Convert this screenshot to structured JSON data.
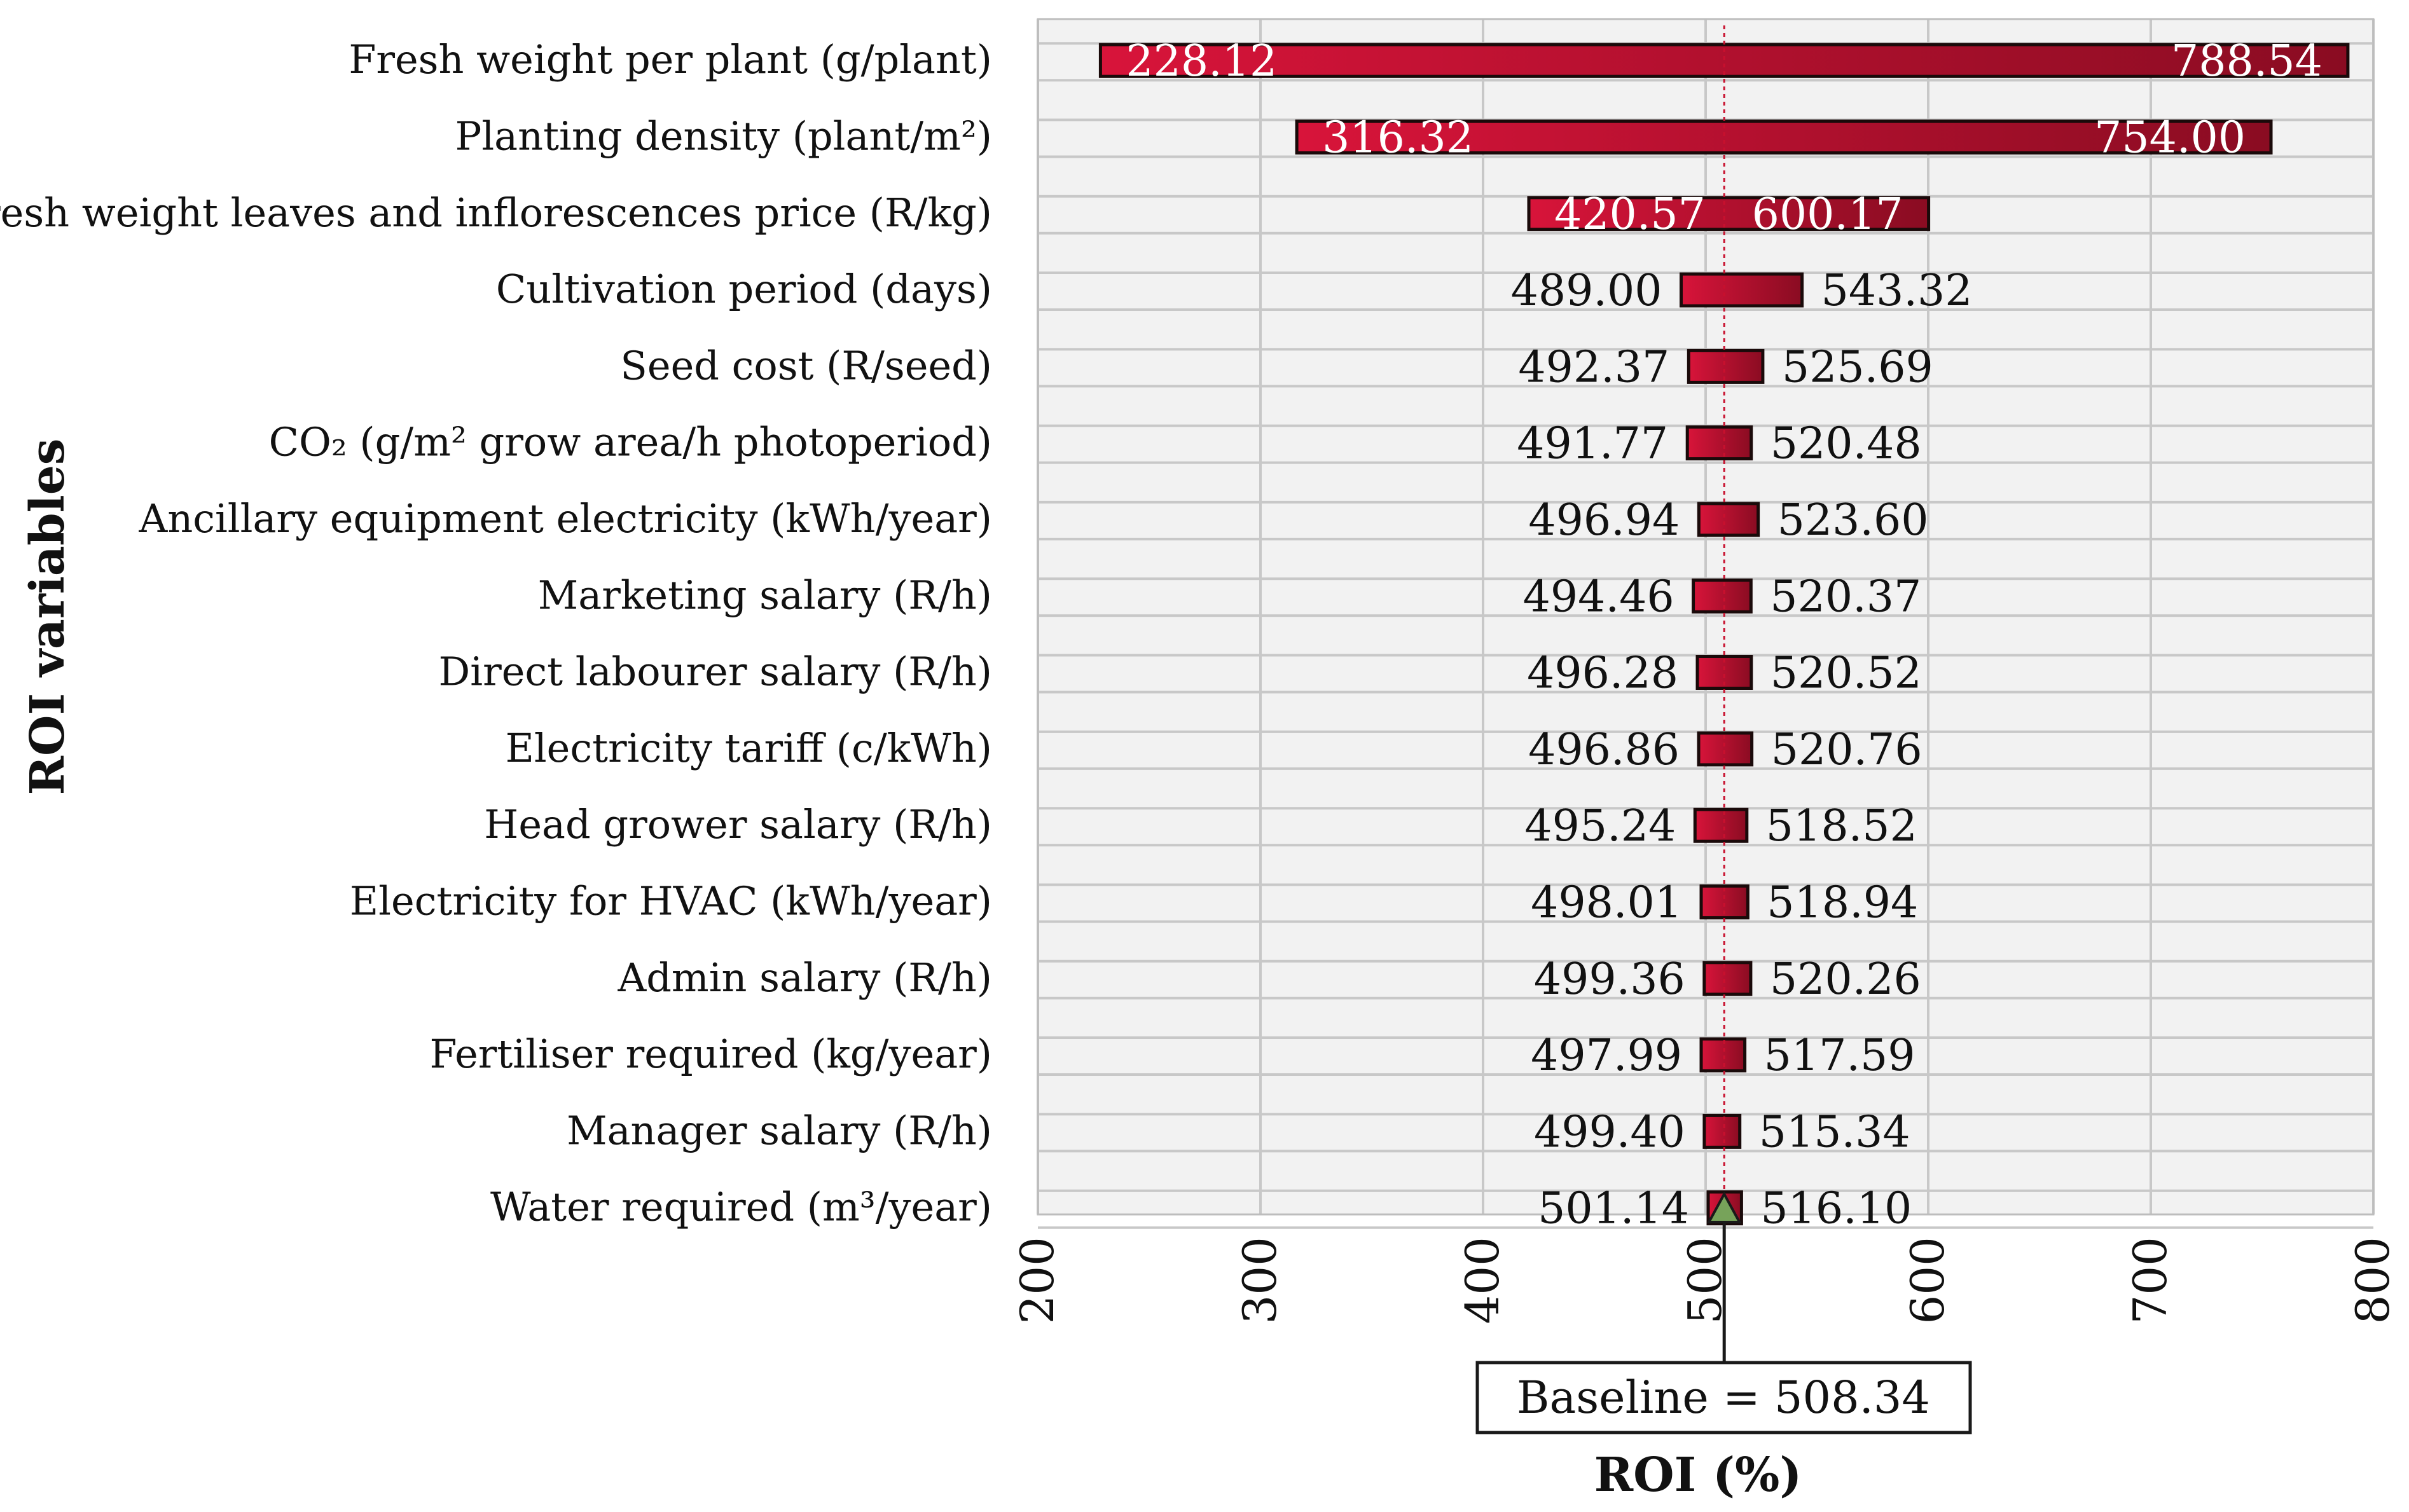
{
  "chart_data": {
    "type": "bar",
    "subtype": "tornado",
    "title": "",
    "xlabel": "ROI (%)",
    "ylabel": "ROI variables",
    "xlim": [
      200,
      800
    ],
    "xticks": [
      200,
      300,
      400,
      500,
      600,
      700,
      800
    ],
    "baseline": 508.34,
    "baseline_label": "Baseline = 508.34",
    "colors": {
      "bar": "#c8102e",
      "bar_dark": "#7a0c1e",
      "grid": "#c8c8c8",
      "plot_bg": "#f2f2f2",
      "marker": "#77a35a"
    },
    "categories": [
      "Fresh weight per plant (g/plant)",
      "Planting density (plant/m²)",
      "Fresh weight leaves and inflorescences price (R/kg)",
      "Cultivation period (days)",
      "Seed cost (R/seed)",
      "CO₂ (g/m² grow area/h photoperiod)",
      "Ancillary equipment electricity (kWh/year)",
      "Marketing salary (R/h)",
      "Direct labourer salary (R/h)",
      "Electricity tariff (c/kWh)",
      "Head grower salary (R/h)",
      "Electricity for HVAC (kWh/year)",
      "Admin salary (R/h)",
      "Fertiliser required (kg/year)",
      "Manager salary (R/h)",
      "Water required (m³/year)"
    ],
    "low": [
      228.12,
      316.32,
      420.57,
      489.0,
      492.37,
      491.77,
      496.94,
      494.46,
      496.28,
      496.86,
      495.24,
      498.01,
      499.36,
      497.99,
      499.4,
      501.14
    ],
    "high": [
      788.54,
      754.0,
      600.17,
      543.32,
      525.69,
      520.48,
      523.6,
      520.37,
      520.52,
      520.76,
      518.52,
      518.94,
      520.26,
      517.59,
      515.34,
      516.1
    ],
    "low_labels": [
      "228.12",
      "316.32",
      "420.57",
      "489.00",
      "492.37",
      "491.77",
      "496.94",
      "494.46",
      "496.28",
      "496.86",
      "495.24",
      "498.01",
      "499.36",
      "497.99",
      "499.40",
      "501.14"
    ],
    "high_labels": [
      "788.54",
      "754.00",
      "600.17",
      "543.32",
      "525.69",
      "520.48",
      "523.60",
      "520.37",
      "520.52",
      "520.76",
      "518.52",
      "518.94",
      "520.26",
      "517.59",
      "515.34",
      "516.10"
    ]
  }
}
